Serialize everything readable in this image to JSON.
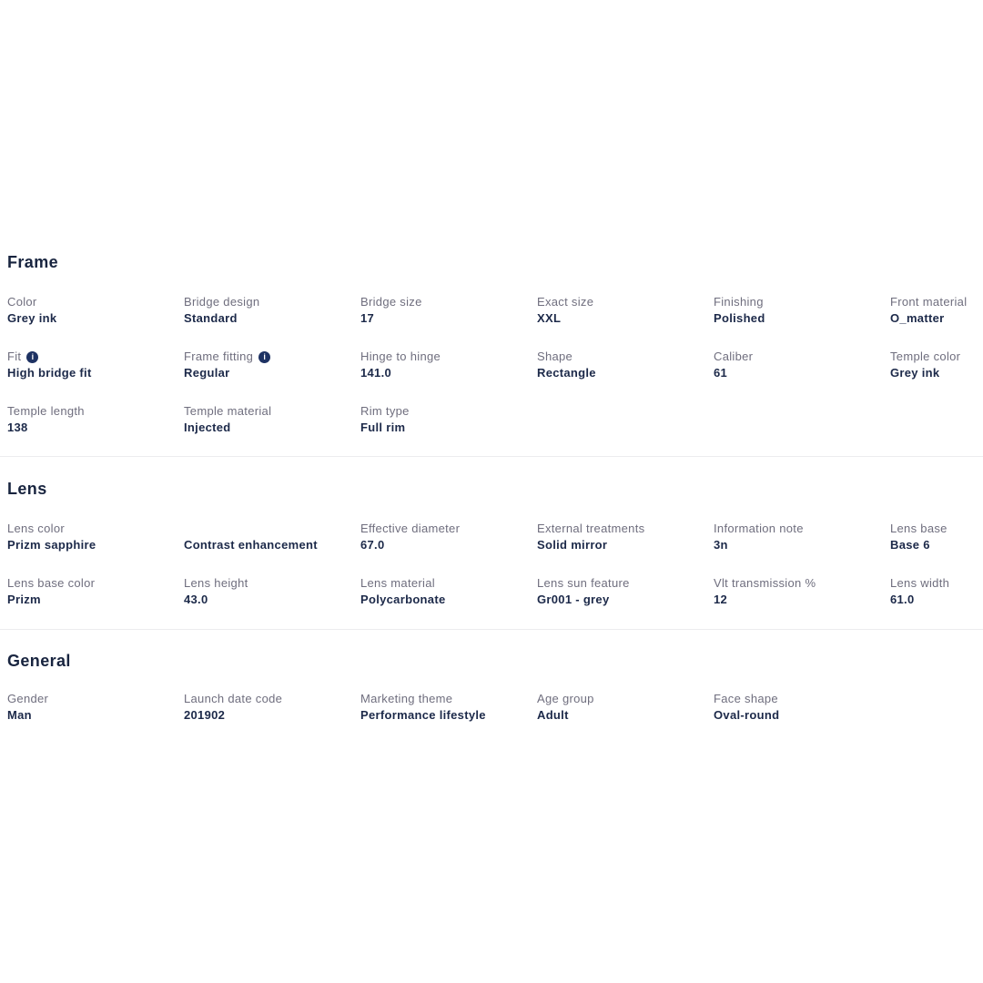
{
  "page": {
    "background": "#ffffff",
    "heading_color": "#18243f",
    "label_color": "#6f6e7e",
    "value_color": "#1c2949",
    "divider_color": "#ececee",
    "info_icon_color": "#1e3263",
    "info_icon_glyph": "i"
  },
  "sections": [
    {
      "title": "Frame",
      "items": [
        {
          "label": "Color",
          "value": "Grey ink",
          "info": false
        },
        {
          "label": "Bridge design",
          "value": "Standard",
          "info": false
        },
        {
          "label": "Bridge size",
          "value": "17",
          "info": false
        },
        {
          "label": "Exact size",
          "value": "XXL",
          "info": false
        },
        {
          "label": "Finishing",
          "value": "Polished",
          "info": false
        },
        {
          "label": "Front material",
          "value": "O_matter",
          "info": false
        },
        {
          "label": "Fit",
          "value": "High bridge fit",
          "info": true
        },
        {
          "label": "Frame fitting",
          "value": "Regular",
          "info": true
        },
        {
          "label": "Hinge to hinge",
          "value": "141.0",
          "info": false
        },
        {
          "label": "Shape",
          "value": "Rectangle",
          "info": false
        },
        {
          "label": "Caliber",
          "value": "61",
          "info": false
        },
        {
          "label": "Temple color",
          "value": "Grey ink",
          "info": false
        },
        {
          "label": "Temple length",
          "value": "138",
          "info": false
        },
        {
          "label": "Temple material",
          "value": "Injected",
          "info": false
        },
        {
          "label": "Rim type",
          "value": "Full rim",
          "info": false
        }
      ]
    },
    {
      "title": "Lens",
      "items": [
        {
          "label": "Lens color",
          "value": "Prizm sapphire",
          "info": false
        },
        {
          "label": "",
          "value": "Contrast enhancement",
          "info": false
        },
        {
          "label": "Effective diameter",
          "value": "67.0",
          "info": false
        },
        {
          "label": "External treatments",
          "value": "Solid mirror",
          "info": false
        },
        {
          "label": "Information note",
          "value": "3n",
          "info": false
        },
        {
          "label": "Lens base",
          "value": "Base 6",
          "info": false
        },
        {
          "label": "Lens base color",
          "value": "Prizm",
          "info": false
        },
        {
          "label": "Lens height",
          "value": "43.0",
          "info": false
        },
        {
          "label": "Lens material",
          "value": "Polycarbonate",
          "info": false
        },
        {
          "label": "Lens sun feature",
          "value": "Gr001 - grey",
          "info": false
        },
        {
          "label": "Vlt transmission %",
          "value": "12",
          "info": false
        },
        {
          "label": "Lens width",
          "value": "61.0",
          "info": false
        }
      ]
    },
    {
      "title": "General",
      "items": [
        {
          "label": "Gender",
          "value": "Man",
          "info": false
        },
        {
          "label": "Launch date code",
          "value": "201902",
          "info": false
        },
        {
          "label": "Marketing theme",
          "value": "Performance lifestyle",
          "info": false
        },
        {
          "label": "Age group",
          "value": "Adult",
          "info": false
        },
        {
          "label": "Face shape",
          "value": "Oval-round",
          "info": false
        }
      ]
    }
  ]
}
